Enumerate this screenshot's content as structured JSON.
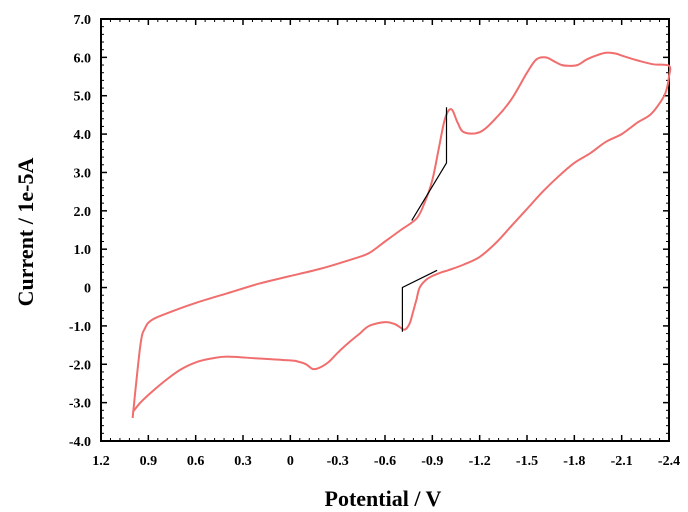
{
  "chart_data": {
    "type": "line",
    "title": "",
    "xlabel": "Potential / V",
    "ylabel": "Current / 1e-5A",
    "xlim": [
      1.2,
      -2.4
    ],
    "ylim": [
      -4.0,
      7.0
    ],
    "x_reversed": true,
    "grid": false,
    "legend": "none",
    "x_ticks": [
      {
        "value": 1.2,
        "label": "1.2"
      },
      {
        "value": 0.9,
        "label": "0.9"
      },
      {
        "value": 0.6,
        "label": "0.6"
      },
      {
        "value": 0.3,
        "label": "0.3"
      },
      {
        "value": 0.0,
        "label": "0"
      },
      {
        "value": -0.3,
        "label": "-0.3"
      },
      {
        "value": -0.6,
        "label": "-0.6"
      },
      {
        "value": -0.9,
        "label": "-0.9"
      },
      {
        "value": -1.2,
        "label": "-1.2"
      },
      {
        "value": -1.5,
        "label": "-1.5"
      },
      {
        "value": -1.8,
        "label": "-1.8"
      },
      {
        "value": -2.1,
        "label": "-2.1"
      },
      {
        "value": -2.4,
        "label": "-2.4"
      }
    ],
    "y_ticks": [
      {
        "value": 7.0,
        "label": "7.0"
      },
      {
        "value": 6.0,
        "label": "6.0"
      },
      {
        "value": 5.0,
        "label": "5.0"
      },
      {
        "value": 4.0,
        "label": "4.0"
      },
      {
        "value": 3.0,
        "label": "3.0"
      },
      {
        "value": 2.0,
        "label": "2.0"
      },
      {
        "value": 1.0,
        "label": "1.0"
      },
      {
        "value": 0.0,
        "label": "0"
      },
      {
        "value": -1.0,
        "label": "-1.0"
      },
      {
        "value": -2.0,
        "label": "-2.0"
      },
      {
        "value": -3.0,
        "label": "-3.0"
      },
      {
        "value": -4.0,
        "label": "-4.0"
      }
    ],
    "series": [
      {
        "color": "#f06e6e",
        "x": [
          1.0,
          0.95,
          0.92,
          0.88,
          0.8,
          0.6,
          0.4,
          0.2,
          0.0,
          -0.2,
          -0.4,
          -0.5,
          -0.6,
          -0.7,
          -0.8,
          -0.85,
          -0.9,
          -0.94,
          -0.98,
          -1.02,
          -1.06,
          -1.1,
          -1.2,
          -1.3,
          -1.4,
          -1.5,
          -1.56,
          -1.62,
          -1.67,
          -1.72,
          -1.76,
          -1.82,
          -1.88,
          -1.94,
          -2.0,
          -2.06,
          -2.12,
          -2.2,
          -2.3,
          -2.4,
          -2.4,
          -2.38,
          -2.34,
          -2.28,
          -2.2,
          -2.1,
          -2.0,
          -1.9,
          -1.8,
          -1.7,
          -1.6,
          -1.5,
          -1.4,
          -1.3,
          -1.2,
          -1.1,
          -1.0,
          -0.96,
          -0.9,
          -0.86,
          -0.82,
          -0.8,
          -0.78,
          -0.76,
          -0.74,
          -0.72,
          -0.7,
          -0.66,
          -0.6,
          -0.5,
          -0.44,
          -0.38,
          -0.3,
          -0.24,
          -0.18,
          -0.14,
          -0.1,
          -0.05,
          0.0,
          0.2,
          0.4,
          0.5,
          0.6,
          0.7,
          0.8,
          0.9,
          0.95,
          1.0
        ],
        "y": [
          -3.4,
          -1.5,
          -1.05,
          -0.85,
          -0.7,
          -0.4,
          -0.15,
          0.1,
          0.3,
          0.5,
          0.75,
          0.9,
          1.2,
          1.5,
          1.8,
          2.2,
          2.8,
          3.6,
          4.4,
          4.65,
          4.3,
          4.05,
          4.05,
          4.4,
          4.9,
          5.6,
          5.95,
          6.0,
          5.9,
          5.8,
          5.78,
          5.8,
          5.95,
          6.05,
          6.12,
          6.1,
          6.02,
          5.92,
          5.82,
          5.78,
          5.5,
          5.1,
          4.8,
          4.5,
          4.3,
          4.0,
          3.8,
          3.5,
          3.25,
          2.9,
          2.5,
          2.05,
          1.6,
          1.15,
          0.8,
          0.6,
          0.45,
          0.4,
          0.3,
          0.2,
          0.0,
          -0.3,
          -0.6,
          -0.9,
          -1.05,
          -1.1,
          -1.05,
          -0.95,
          -0.9,
          -1.0,
          -1.2,
          -1.4,
          -1.7,
          -1.95,
          -2.1,
          -2.12,
          -2.0,
          -1.93,
          -1.9,
          -1.85,
          -1.8,
          -1.85,
          -1.95,
          -2.15,
          -2.45,
          -2.8,
          -3.0,
          -3.25
        ]
      }
    ],
    "annotations": [
      {
        "type": "baseline-line",
        "color": "#000000",
        "x": [
          -0.99,
          -0.99,
          -0.77
        ],
        "y": [
          4.7,
          3.25,
          1.75
        ]
      },
      {
        "type": "baseline-line",
        "color": "#000000",
        "x": [
          -0.71,
          -0.71,
          -0.93
        ],
        "y": [
          -1.15,
          0.0,
          0.45
        ]
      }
    ]
  }
}
